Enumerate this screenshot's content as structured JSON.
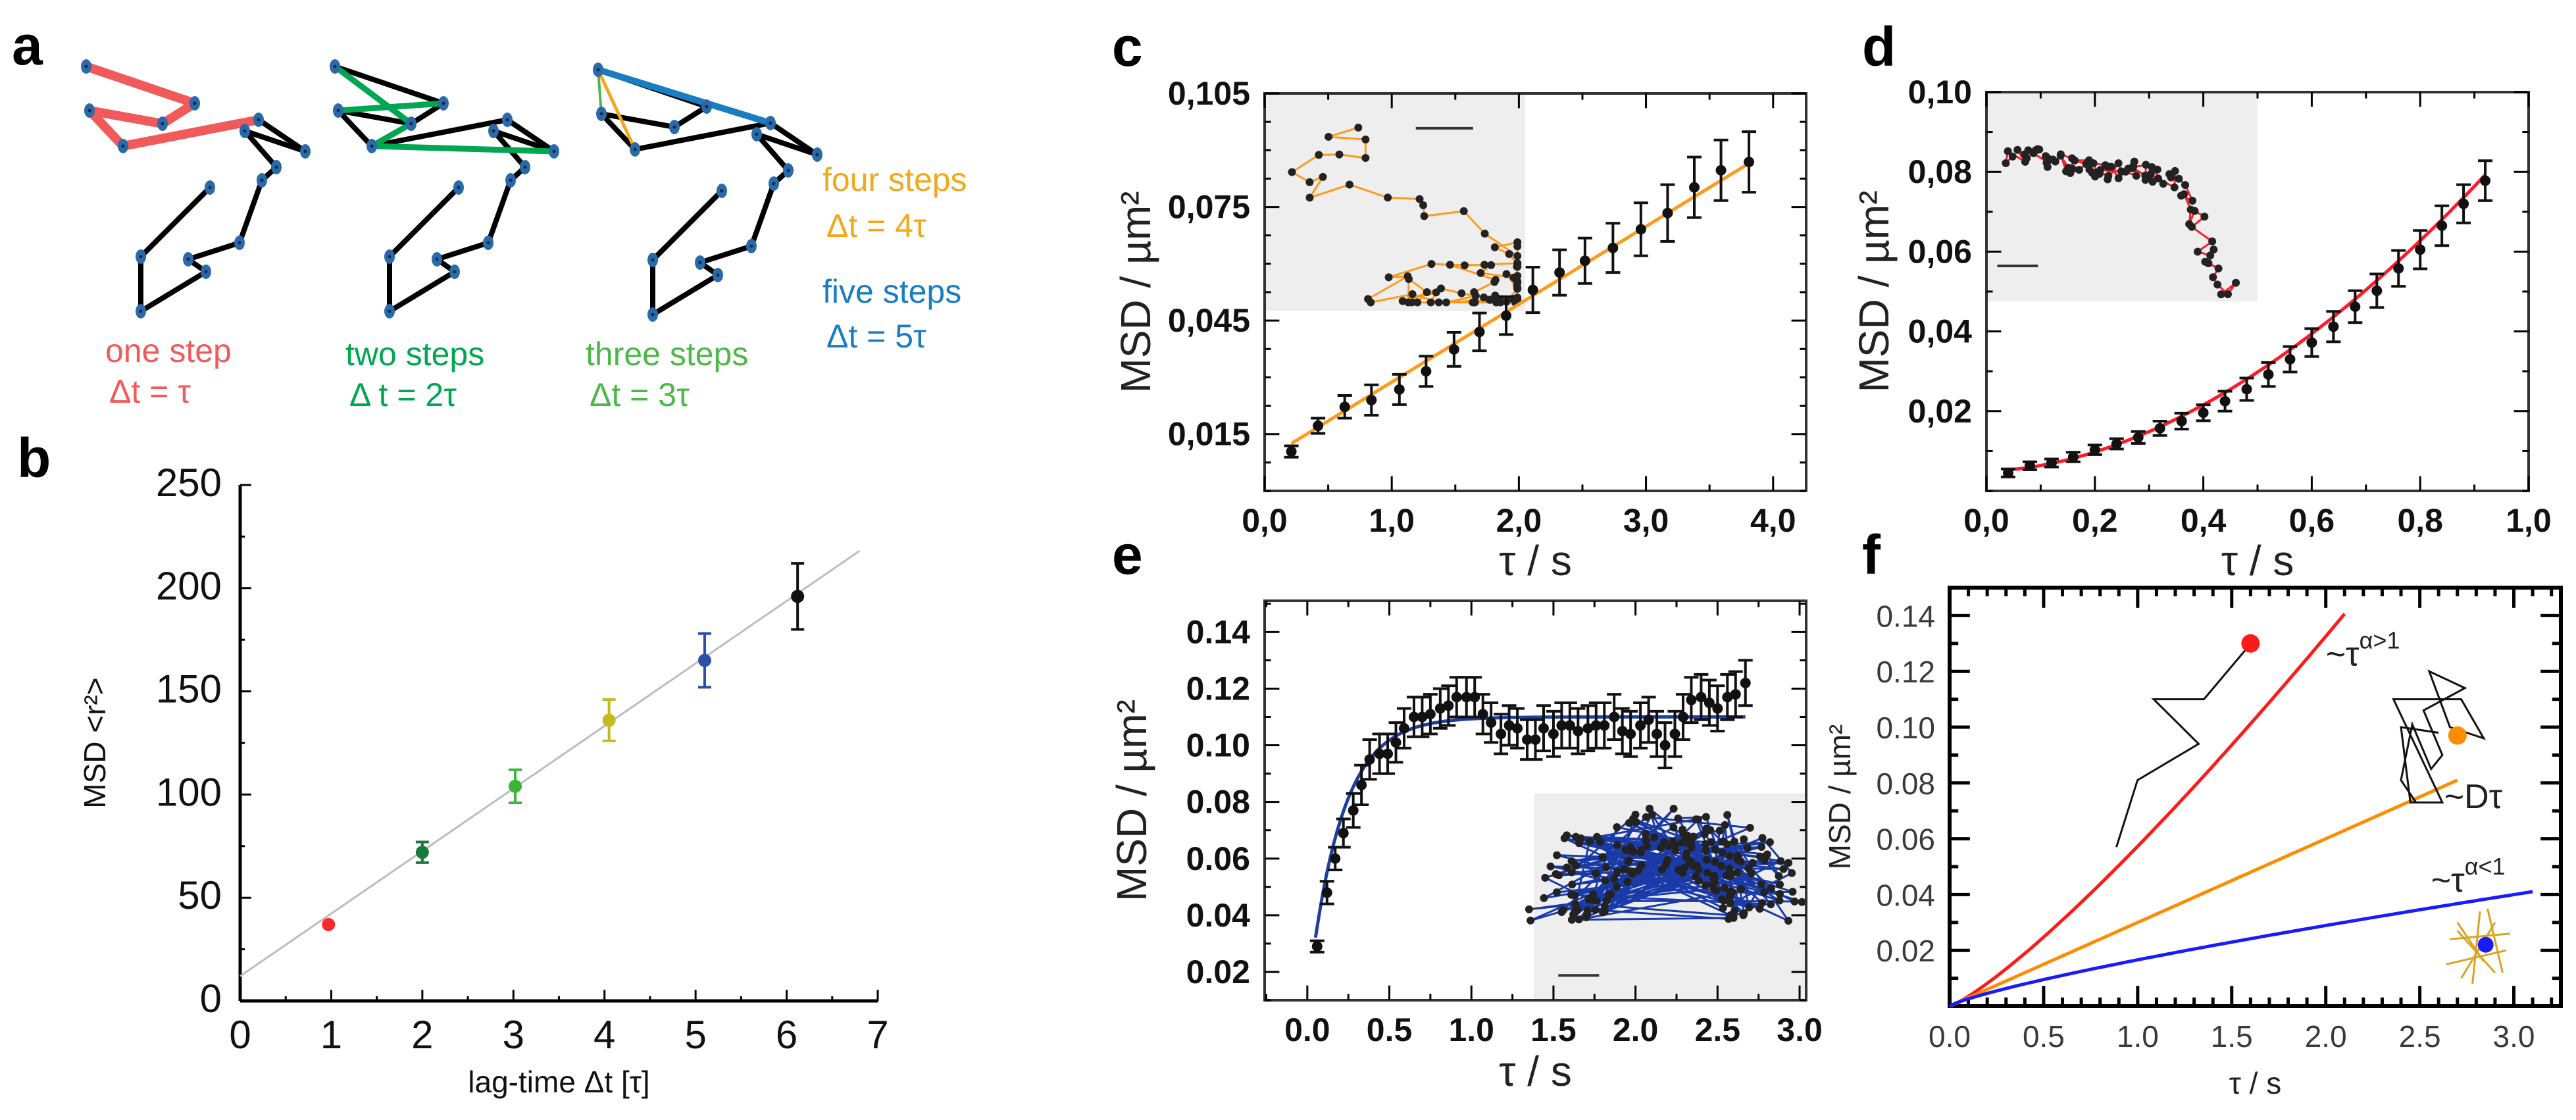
{
  "panel_labels": {
    "a": "a",
    "b": "b",
    "c": "c",
    "d": "d",
    "e": "e",
    "f": "f"
  },
  "panel_a": {
    "node_color": "#2a6aa8",
    "captions": [
      {
        "steps": "one step",
        "dt": "Δt = τ",
        "color": "#f05a5a"
      },
      {
        "steps": "two steps",
        "dt": "Δ t = 2τ",
        "color": "#00a651"
      },
      {
        "steps": "three steps",
        "dt": "Δt = 3τ",
        "color": "#4cb848"
      },
      {
        "steps": "four steps",
        "dt": "Δt = 4τ",
        "color": "#f2a81d"
      },
      {
        "steps": "five steps",
        "dt": "Δt = 5τ",
        "color": "#1a7cc1"
      }
    ]
  },
  "chart_data": [
    {
      "panel": "b",
      "type": "scatter",
      "xlabel": "lag-time Δt  [τ]",
      "ylabel": "MSD <r²>",
      "xlim": [
        0,
        7
      ],
      "ylim": [
        0,
        250
      ],
      "grid": false,
      "xticks": [
        0,
        1,
        2,
        3,
        4,
        5,
        6,
        7
      ],
      "xtick_labels": [
        "0",
        "1",
        "2",
        "3",
        "4",
        "5",
        "6",
        "7"
      ],
      "yticks": [
        0,
        50,
        100,
        150,
        200,
        250
      ],
      "ytick_labels": [
        "0",
        "50",
        "100",
        "150",
        "200",
        "250"
      ],
      "x_minor": 0.5,
      "y_minor": 25,
      "x": [
        0.97,
        2.0,
        3.02,
        4.05,
        5.1,
        6.12
      ],
      "y": [
        37,
        72,
        104,
        136,
        165,
        196
      ],
      "err": [
        0,
        5,
        8,
        10,
        13,
        16
      ],
      "point_colors": [
        "#ff2b2b",
        "#1a7a3a",
        "#3cb43c",
        "#c2bb22",
        "#2a4fa8",
        "#111111"
      ],
      "fit": {
        "type": "linear",
        "slope": 30.3,
        "intercept": 12,
        "x_range": [
          0,
          6.8
        ],
        "color": "#bdbdbd"
      }
    },
    {
      "panel": "c",
      "type": "scatter",
      "xlabel": "τ / s",
      "ylabel": "MSD / µm²",
      "xlim": [
        0,
        4.26
      ],
      "ylim": [
        0,
        0.105
      ],
      "grid": false,
      "xticks": [
        0,
        1,
        2,
        3,
        4
      ],
      "xtick_labels": [
        "0,0",
        "1,0",
        "2,0",
        "3,0",
        "4,0"
      ],
      "yticks": [
        0.015,
        0.045,
        0.075,
        0.105
      ],
      "ytick_labels": [
        "0,015",
        "0,045",
        "0,075",
        "0,105"
      ],
      "x_minor": 0.5,
      "y_minor": 0.0075,
      "x": [
        0.21,
        0.42,
        0.63,
        0.84,
        1.06,
        1.27,
        1.49,
        1.69,
        1.9,
        2.11,
        2.32,
        2.52,
        2.74,
        2.96,
        3.17,
        3.38,
        3.59,
        3.81
      ],
      "y": [
        0.0104,
        0.0172,
        0.0222,
        0.024,
        0.0268,
        0.0316,
        0.0374,
        0.042,
        0.0463,
        0.0531,
        0.0577,
        0.0608,
        0.0642,
        0.0691,
        0.0734,
        0.0802,
        0.0847,
        0.0869
      ],
      "err": [
        0.0015,
        0.002,
        0.003,
        0.004,
        0.004,
        0.004,
        0.0045,
        0.005,
        0.005,
        0.006,
        0.006,
        0.006,
        0.0065,
        0.007,
        0.0075,
        0.008,
        0.008,
        0.008
      ],
      "fit": {
        "type": "linear",
        "slope": 0.02056,
        "intercept": 0.0082,
        "x_range": [
          0.21,
          3.81
        ],
        "color": "#ff9a1a"
      },
      "inset": {
        "line_color": "#ff9a1a",
        "background": "#eeeeee"
      }
    },
    {
      "panel": "d",
      "type": "scatter",
      "xlabel": "τ / s",
      "ylabel": "MSD / µm²",
      "xlim": [
        0,
        1.0
      ],
      "ylim": [
        0,
        0.1
      ],
      "grid": false,
      "xticks": [
        0,
        0.2,
        0.4,
        0.6,
        0.8,
        1.0
      ],
      "xtick_labels": [
        "0,0",
        "0,2",
        "0,4",
        "0,6",
        "0,8",
        "1,0"
      ],
      "yticks": [
        0.02,
        0.04,
        0.06,
        0.08,
        0.1
      ],
      "ytick_labels": [
        "0,02",
        "0,04",
        "0,06",
        "0,08",
        "0,10"
      ],
      "x_minor": 0.1,
      "y_minor": 0.01,
      "x": [
        0.04,
        0.08,
        0.12,
        0.16,
        0.2,
        0.24,
        0.28,
        0.32,
        0.36,
        0.4,
        0.44,
        0.48,
        0.52,
        0.56,
        0.6,
        0.64,
        0.68,
        0.72,
        0.76,
        0.8,
        0.84,
        0.88,
        0.92
      ],
      "y": [
        0.0045,
        0.0063,
        0.007,
        0.0085,
        0.0103,
        0.0118,
        0.0134,
        0.0157,
        0.0175,
        0.0196,
        0.0225,
        0.0255,
        0.0292,
        0.033,
        0.0372,
        0.0412,
        0.0462,
        0.0502,
        0.0558,
        0.0605,
        0.0665,
        0.072,
        0.0778
      ],
      "err": [
        0.001,
        0.001,
        0.001,
        0.0012,
        0.0012,
        0.0013,
        0.0015,
        0.0018,
        0.002,
        0.002,
        0.0025,
        0.0028,
        0.003,
        0.0032,
        0.0035,
        0.0038,
        0.004,
        0.0042,
        0.0045,
        0.0048,
        0.005,
        0.0048,
        0.005
      ],
      "fit": {
        "type": "power",
        "offset": 0.005,
        "a": 0.0863,
        "alpha": 1.8,
        "x_range": [
          0.04,
          0.92
        ],
        "color": "#ff1a2a"
      },
      "inset": {
        "line_color": "#ff1a2a",
        "background": "#eeeeee"
      }
    },
    {
      "panel": "e",
      "type": "scatter",
      "xlabel": "τ / s",
      "ylabel": "MSD / µm²",
      "xlim": [
        -0.26,
        3.04
      ],
      "ylim": [
        0.01,
        0.151
      ],
      "grid": false,
      "xticks": [
        0,
        0.5,
        1.0,
        1.5,
        2.0,
        2.5,
        3.0
      ],
      "xtick_labels": [
        "0.0",
        "0.5",
        "1.0",
        "1.5",
        "2.0",
        "2.5",
        "3.0"
      ],
      "yticks": [
        0.02,
        0.04,
        0.06,
        0.08,
        0.1,
        0.12,
        0.14
      ],
      "ytick_labels": [
        "0.02",
        "0.04",
        "0.06",
        "0.08",
        "0.10",
        "0.12",
        "0.14"
      ],
      "x_minor": 0.25,
      "y_minor": 0.01,
      "x": [
        0.06,
        0.12,
        0.17,
        0.22,
        0.28,
        0.33,
        0.38,
        0.44,
        0.49,
        0.54,
        0.59,
        0.65,
        0.7,
        0.75,
        0.81,
        0.86,
        0.91,
        0.97,
        1.02,
        1.07,
        1.12,
        1.18,
        1.23,
        1.28,
        1.34,
        1.39,
        1.44,
        1.5,
        1.55,
        1.6,
        1.65,
        1.71,
        1.76,
        1.81,
        1.87,
        1.92,
        1.97,
        2.03,
        2.08,
        2.13,
        2.18,
        2.24,
        2.29,
        2.34,
        2.4,
        2.45,
        2.5,
        2.56,
        2.61,
        2.67
      ],
      "y": [
        0.029,
        0.048,
        0.06,
        0.069,
        0.077,
        0.086,
        0.095,
        0.097,
        0.097,
        0.101,
        0.106,
        0.11,
        0.11,
        0.111,
        0.113,
        0.114,
        0.117,
        0.117,
        0.117,
        0.111,
        0.108,
        0.104,
        0.107,
        0.106,
        0.102,
        0.102,
        0.106,
        0.104,
        0.107,
        0.107,
        0.105,
        0.106,
        0.107,
        0.107,
        0.11,
        0.105,
        0.104,
        0.107,
        0.109,
        0.104,
        0.1,
        0.104,
        0.11,
        0.116,
        0.117,
        0.115,
        0.113,
        0.117,
        0.118,
        0.122
      ],
      "err": [
        0.002,
        0.004,
        0.004,
        0.005,
        0.006,
        0.007,
        0.007,
        0.007,
        0.007,
        0.007,
        0.007,
        0.007,
        0.007,
        0.007,
        0.007,
        0.007,
        0.007,
        0.007,
        0.007,
        0.007,
        0.007,
        0.007,
        0.007,
        0.007,
        0.007,
        0.007,
        0.008,
        0.008,
        0.008,
        0.008,
        0.008,
        0.008,
        0.008,
        0.008,
        0.008,
        0.008,
        0.008,
        0.008,
        0.008,
        0.008,
        0.008,
        0.008,
        0.008,
        0.008,
        0.008,
        0.008,
        0.008,
        0.008,
        0.008,
        0.008
      ],
      "fit": {
        "type": "exp-saturation",
        "plateau": 0.11,
        "amp": 0.1,
        "tau": 0.2,
        "x_range": [
          0.05,
          2.67
        ],
        "color": "#1f3fa0"
      },
      "inset": {
        "line_color": "#1a3aa8",
        "background": "#eeeeee"
      }
    },
    {
      "panel": "f",
      "type": "line",
      "xlabel": "τ / s",
      "ylabel": "MSD / µm²",
      "xlim": [
        0,
        3.25
      ],
      "ylim": [
        0,
        0.15
      ],
      "grid": false,
      "xticks": [
        0,
        0.5,
        1.0,
        1.5,
        2.0,
        2.5,
        3.0
      ],
      "xtick_labels": [
        "0.0",
        "0.5",
        "1.0",
        "1.5",
        "2.0",
        "2.5",
        "3.0"
      ],
      "yticks": [
        0.02,
        0.04,
        0.06,
        0.08,
        0.1,
        0.12,
        0.14
      ],
      "ytick_labels": [
        "0.02",
        "0.04",
        "0.06",
        "0.08",
        "0.10",
        "0.12",
        "0.14"
      ],
      "x_minor": 0.1,
      "y_minor": 0.01,
      "series": [
        {
          "label": "~τ",
          "sup": "α>1",
          "color": "#ff1a1a",
          "a": 0.0573,
          "alpha": 1.21,
          "x_range": [
            0,
            2.1
          ]
        },
        {
          "label": "~Dτ",
          "sup": "",
          "color": "#ff8c00",
          "a": 0.03,
          "alpha": 1.0,
          "x_range": [
            0,
            2.7
          ]
        },
        {
          "label": "~τ",
          "sup": "α<1",
          "color": "#1a1aff",
          "a": 0.0166,
          "alpha": 0.8,
          "x_range": [
            0,
            3.1
          ]
        }
      ]
    }
  ]
}
